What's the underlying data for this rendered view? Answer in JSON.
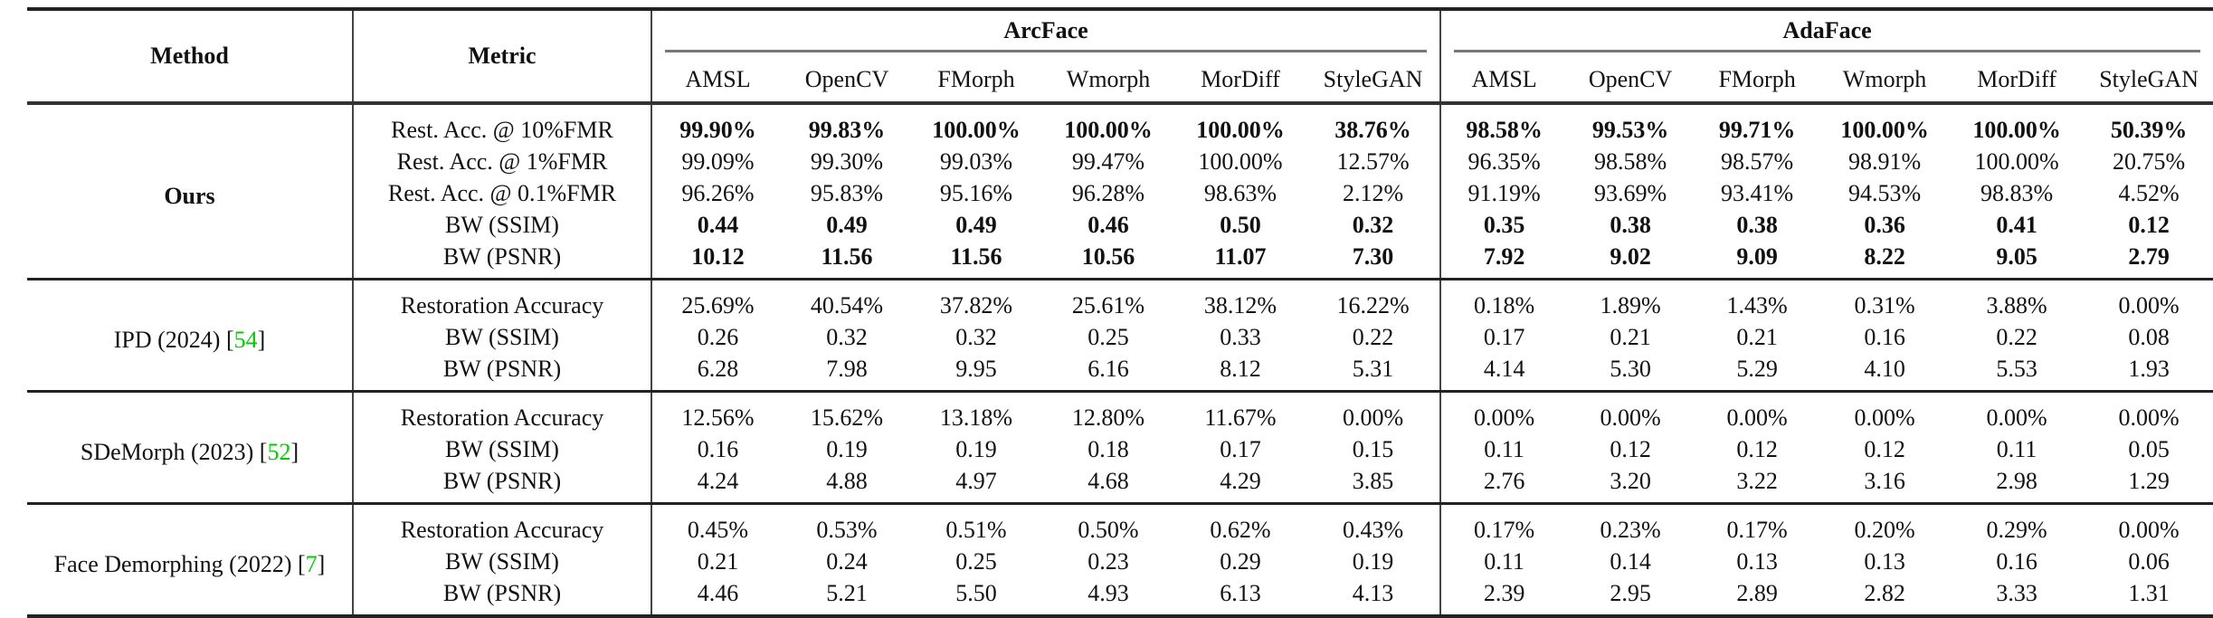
{
  "header": {
    "method": "Method",
    "metric": "Metric",
    "groups": [
      "ArcFace",
      "AdaFace"
    ],
    "columns": [
      "AMSL",
      "OpenCV",
      "FMorph",
      "Wmorph",
      "MorDiff",
      "StyleGAN"
    ]
  },
  "citation_color": "#00cc00",
  "methods": [
    {
      "name": "Ours",
      "ref": "",
      "bold_name": true,
      "rows": [
        {
          "metric": "Rest. Acc. @ 10%FMR",
          "bold": true,
          "arcface": [
            "99.90%",
            "99.83%",
            "100.00%",
            "100.00%",
            "100.00%",
            "38.76%"
          ],
          "adaface": [
            "98.58%",
            "99.53%",
            "99.71%",
            "100.00%",
            "100.00%",
            "50.39%"
          ]
        },
        {
          "metric": "Rest. Acc. @ 1%FMR",
          "bold": false,
          "arcface": [
            "99.09%",
            "99.30%",
            "99.03%",
            "99.47%",
            "100.00%",
            "12.57%"
          ],
          "adaface": [
            "96.35%",
            "98.58%",
            "98.57%",
            "98.91%",
            "100.00%",
            "20.75%"
          ]
        },
        {
          "metric": "Rest. Acc. @ 0.1%FMR",
          "bold": false,
          "arcface": [
            "96.26%",
            "95.83%",
            "95.16%",
            "96.28%",
            "98.63%",
            "2.12%"
          ],
          "adaface": [
            "91.19%",
            "93.69%",
            "93.41%",
            "94.53%",
            "98.83%",
            "4.52%"
          ]
        },
        {
          "metric": "BW (SSIM)",
          "bold": true,
          "arcface": [
            "0.44",
            "0.49",
            "0.49",
            "0.46",
            "0.50",
            "0.32"
          ],
          "adaface": [
            "0.35",
            "0.38",
            "0.38",
            "0.36",
            "0.41",
            "0.12"
          ]
        },
        {
          "metric": "BW (PSNR)",
          "bold": true,
          "arcface": [
            "10.12",
            "11.56",
            "11.56",
            "10.56",
            "11.07",
            "7.30"
          ],
          "adaface": [
            "7.92",
            "9.02",
            "9.09",
            "8.22",
            "9.05",
            "2.79"
          ]
        }
      ]
    },
    {
      "name": "IPD (2024) ",
      "ref": "54",
      "bold_name": false,
      "rows": [
        {
          "metric": "Restoration Accuracy",
          "bold": false,
          "arcface": [
            "25.69%",
            "40.54%",
            "37.82%",
            "25.61%",
            "38.12%",
            "16.22%"
          ],
          "adaface": [
            "0.18%",
            "1.89%",
            "1.43%",
            "0.31%",
            "3.88%",
            "0.00%"
          ]
        },
        {
          "metric": "BW (SSIM)",
          "bold": false,
          "arcface": [
            "0.26",
            "0.32",
            "0.32",
            "0.25",
            "0.33",
            "0.22"
          ],
          "adaface": [
            "0.17",
            "0.21",
            "0.21",
            "0.16",
            "0.22",
            "0.08"
          ]
        },
        {
          "metric": "BW (PSNR)",
          "bold": false,
          "arcface": [
            "6.28",
            "7.98",
            "9.95",
            "6.16",
            "8.12",
            "5.31"
          ],
          "adaface": [
            "4.14",
            "5.30",
            "5.29",
            "4.10",
            "5.53",
            "1.93"
          ]
        }
      ]
    },
    {
      "name": "SDeMorph (2023) ",
      "ref": "52",
      "bold_name": false,
      "rows": [
        {
          "metric": "Restoration Accuracy",
          "bold": false,
          "arcface": [
            "12.56%",
            "15.62%",
            "13.18%",
            "12.80%",
            "11.67%",
            "0.00%"
          ],
          "adaface": [
            "0.00%",
            "0.00%",
            "0.00%",
            "0.00%",
            "0.00%",
            "0.00%"
          ]
        },
        {
          "metric": "BW (SSIM)",
          "bold": false,
          "arcface": [
            "0.16",
            "0.19",
            "0.19",
            "0.18",
            "0.17",
            "0.15"
          ],
          "adaface": [
            "0.11",
            "0.12",
            "0.12",
            "0.12",
            "0.11",
            "0.05"
          ]
        },
        {
          "metric": "BW (PSNR)",
          "bold": false,
          "arcface": [
            "4.24",
            "4.88",
            "4.97",
            "4.68",
            "4.29",
            "3.85"
          ],
          "adaface": [
            "2.76",
            "3.20",
            "3.22",
            "3.16",
            "2.98",
            "1.29"
          ]
        }
      ]
    },
    {
      "name": "Face Demorphing (2022) ",
      "ref": "7",
      "bold_name": false,
      "rows": [
        {
          "metric": "Restoration Accuracy",
          "bold": false,
          "arcface": [
            "0.45%",
            "0.53%",
            "0.51%",
            "0.50%",
            "0.62%",
            "0.43%"
          ],
          "adaface": [
            "0.17%",
            "0.23%",
            "0.17%",
            "0.20%",
            "0.29%",
            "0.00%"
          ]
        },
        {
          "metric": "BW (SSIM)",
          "bold": false,
          "arcface": [
            "0.21",
            "0.24",
            "0.25",
            "0.23",
            "0.29",
            "0.19"
          ],
          "adaface": [
            "0.11",
            "0.14",
            "0.13",
            "0.13",
            "0.16",
            "0.06"
          ]
        },
        {
          "metric": "BW (PSNR)",
          "bold": false,
          "arcface": [
            "4.46",
            "5.21",
            "5.50",
            "4.93",
            "6.13",
            "4.13"
          ],
          "adaface": [
            "2.39",
            "2.95",
            "2.89",
            "2.82",
            "3.33",
            "1.31"
          ]
        }
      ]
    }
  ]
}
